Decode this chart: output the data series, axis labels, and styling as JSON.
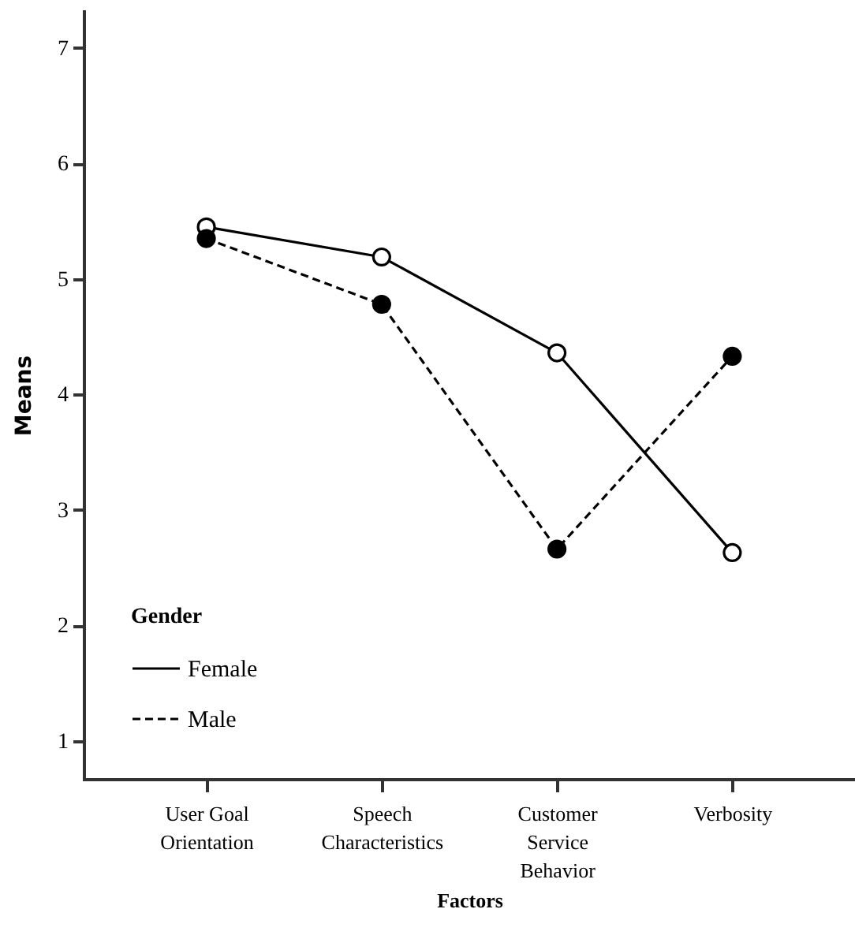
{
  "chart_data": {
    "type": "line",
    "xlabel": "Factors",
    "ylabel": "Means",
    "legend_title": "Gender",
    "categories": [
      "User Goal\nOrientation",
      "Speech\nCharacteristics",
      "Customer\nService\nBehavior",
      "Verbosity"
    ],
    "series": [
      {
        "name": "Female",
        "color": "#000000",
        "line_style": "solid",
        "values": [
          5.45,
          5.19,
          4.36,
          2.63
        ]
      },
      {
        "name": "Male",
        "color": "#000000",
        "line_style": "dashed",
        "values": [
          5.35,
          4.78,
          2.66,
          4.33
        ]
      }
    ],
    "ylim": [
      0.67,
      7.32
    ],
    "yticks": [
      1,
      2,
      3,
      4,
      5,
      6,
      7
    ],
    "marker": "circle",
    "legend": "bottom left",
    "grid": false
  }
}
